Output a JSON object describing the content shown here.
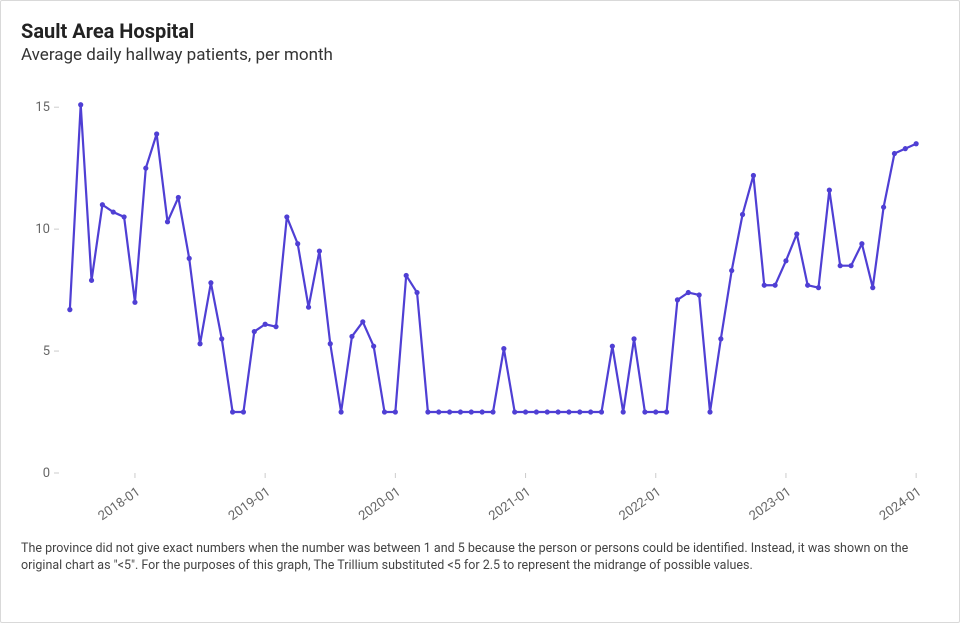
{
  "header": {
    "title": "Sault Area Hospital",
    "subtitle": "Average daily hallway patients, per month"
  },
  "footnote": "The province did not give exact numbers when the number was between 1 and 5 because the person or persons could be identified. Instead, it was shown on the original chart as \"<5\". For the purposes of this graph, The Trillium substituted <5 for 2.5 to represent the midrange of possible values.",
  "chart": {
    "type": "line",
    "line_color": "#4f3fd4",
    "line_width": 2.2,
    "marker_radius": 2.6,
    "marker_fill": "#4f3fd4",
    "background_color": "#ffffff",
    "axis_text_color": "#666666",
    "axis_tick_color": "#cccccc",
    "ylim": [
      0,
      15.5
    ],
    "yticks": [
      0,
      5,
      10,
      15
    ],
    "x_start": "2017-06",
    "x_end": "2024-02",
    "xtick_labels": [
      "2018-01",
      "2019-01",
      "2020-01",
      "2021-01",
      "2022-01",
      "2023-01",
      "2024-01"
    ],
    "xtick_months": [
      "2018-01",
      "2019-01",
      "2020-01",
      "2021-01",
      "2022-01",
      "2023-01",
      "2024-01"
    ],
    "xtick_rotation_deg": -35,
    "data": [
      {
        "m": "2017-07",
        "v": 6.7
      },
      {
        "m": "2017-08",
        "v": 15.1
      },
      {
        "m": "2017-09",
        "v": 7.9
      },
      {
        "m": "2017-10",
        "v": 11.0
      },
      {
        "m": "2017-11",
        "v": 10.7
      },
      {
        "m": "2017-12",
        "v": 10.5
      },
      {
        "m": "2018-01",
        "v": 7.0
      },
      {
        "m": "2018-02",
        "v": 12.5
      },
      {
        "m": "2018-03",
        "v": 13.9
      },
      {
        "m": "2018-04",
        "v": 10.3
      },
      {
        "m": "2018-05",
        "v": 11.3
      },
      {
        "m": "2018-06",
        "v": 8.8
      },
      {
        "m": "2018-07",
        "v": 5.3
      },
      {
        "m": "2018-08",
        "v": 7.8
      },
      {
        "m": "2018-09",
        "v": 5.5
      },
      {
        "m": "2018-10",
        "v": 2.5
      },
      {
        "m": "2018-11",
        "v": 2.5
      },
      {
        "m": "2018-12",
        "v": 5.8
      },
      {
        "m": "2019-01",
        "v": 6.1
      },
      {
        "m": "2019-02",
        "v": 6.0
      },
      {
        "m": "2019-03",
        "v": 10.5
      },
      {
        "m": "2019-04",
        "v": 9.4
      },
      {
        "m": "2019-05",
        "v": 6.8
      },
      {
        "m": "2019-06",
        "v": 9.1
      },
      {
        "m": "2019-07",
        "v": 5.3
      },
      {
        "m": "2019-08",
        "v": 2.5
      },
      {
        "m": "2019-09",
        "v": 5.6
      },
      {
        "m": "2019-10",
        "v": 6.2
      },
      {
        "m": "2019-11",
        "v": 5.2
      },
      {
        "m": "2019-12",
        "v": 2.5
      },
      {
        "m": "2020-01",
        "v": 2.5
      },
      {
        "m": "2020-02",
        "v": 8.1
      },
      {
        "m": "2020-03",
        "v": 7.4
      },
      {
        "m": "2020-04",
        "v": 2.5
      },
      {
        "m": "2020-05",
        "v": 2.5
      },
      {
        "m": "2020-06",
        "v": 2.5
      },
      {
        "m": "2020-07",
        "v": 2.5
      },
      {
        "m": "2020-08",
        "v": 2.5
      },
      {
        "m": "2020-09",
        "v": 2.5
      },
      {
        "m": "2020-10",
        "v": 2.5
      },
      {
        "m": "2020-11",
        "v": 5.1
      },
      {
        "m": "2020-12",
        "v": 2.5
      },
      {
        "m": "2021-01",
        "v": 2.5
      },
      {
        "m": "2021-02",
        "v": 2.5
      },
      {
        "m": "2021-03",
        "v": 2.5
      },
      {
        "m": "2021-04",
        "v": 2.5
      },
      {
        "m": "2021-05",
        "v": 2.5
      },
      {
        "m": "2021-06",
        "v": 2.5
      },
      {
        "m": "2021-07",
        "v": 2.5
      },
      {
        "m": "2021-08",
        "v": 2.5
      },
      {
        "m": "2021-09",
        "v": 5.2
      },
      {
        "m": "2021-10",
        "v": 2.5
      },
      {
        "m": "2021-11",
        "v": 5.5
      },
      {
        "m": "2021-12",
        "v": 2.5
      },
      {
        "m": "2022-01",
        "v": 2.5
      },
      {
        "m": "2022-02",
        "v": 2.5
      },
      {
        "m": "2022-03",
        "v": 7.1
      },
      {
        "m": "2022-04",
        "v": 7.4
      },
      {
        "m": "2022-05",
        "v": 7.3
      },
      {
        "m": "2022-06",
        "v": 2.5
      },
      {
        "m": "2022-07",
        "v": 5.5
      },
      {
        "m": "2022-08",
        "v": 8.3
      },
      {
        "m": "2022-09",
        "v": 10.6
      },
      {
        "m": "2022-10",
        "v": 12.2
      },
      {
        "m": "2022-11",
        "v": 7.7
      },
      {
        "m": "2022-12",
        "v": 7.7
      },
      {
        "m": "2023-01",
        "v": 8.7
      },
      {
        "m": "2023-02",
        "v": 9.8
      },
      {
        "m": "2023-03",
        "v": 7.7
      },
      {
        "m": "2023-04",
        "v": 7.6
      },
      {
        "m": "2023-05",
        "v": 11.6
      },
      {
        "m": "2023-06",
        "v": 8.5
      },
      {
        "m": "2023-07",
        "v": 8.5
      },
      {
        "m": "2023-08",
        "v": 9.4
      },
      {
        "m": "2023-09",
        "v": 7.6
      },
      {
        "m": "2023-10",
        "v": 10.9
      },
      {
        "m": "2023-11",
        "v": 13.1
      },
      {
        "m": "2023-12",
        "v": 13.3
      },
      {
        "m": "2024-01",
        "v": 13.5
      }
    ]
  }
}
